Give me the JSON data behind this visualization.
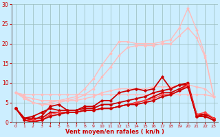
{
  "x": [
    0,
    1,
    2,
    3,
    4,
    5,
    6,
    7,
    8,
    9,
    10,
    11,
    12,
    13,
    14,
    15,
    16,
    17,
    18,
    19,
    20,
    21,
    22,
    23
  ],
  "series": [
    {
      "y": [
        7.5,
        7.0,
        7.0,
        7.0,
        7.0,
        7.0,
        7.0,
        7.0,
        7.0,
        7.0,
        7.0,
        7.0,
        7.0,
        7.0,
        7.0,
        7.0,
        7.0,
        7.0,
        7.0,
        7.0,
        7.0,
        7.0,
        7.0,
        6.5
      ],
      "color": "#ffbbbb",
      "lw": 1.0,
      "marker": "D",
      "ms": 1.5,
      "linestyle": "-"
    },
    {
      "y": [
        7.5,
        6.5,
        5.0,
        4.5,
        5.0,
        5.5,
        6.0,
        6.5,
        8.5,
        11.0,
        14.5,
        17.5,
        20.5,
        20.5,
        20.0,
        20.0,
        20.0,
        20.5,
        21.0,
        24.0,
        29.0,
        23.5,
        17.0,
        6.5
      ],
      "color": "#ffbbbb",
      "lw": 1.0,
      "marker": "D",
      "ms": 1.5,
      "linestyle": "-"
    },
    {
      "y": [
        7.5,
        6.0,
        5.0,
        4.5,
        4.5,
        5.0,
        5.5,
        6.0,
        7.0,
        8.5,
        11.5,
        14.0,
        17.0,
        19.0,
        19.5,
        19.5,
        19.5,
        20.0,
        20.0,
        22.0,
        24.0,
        21.5,
        16.5,
        6.5
      ],
      "color": "#ffbbbb",
      "lw": 1.0,
      "marker": "D",
      "ms": 1.5,
      "linestyle": "-"
    },
    {
      "y": [
        7.5,
        6.5,
        6.0,
        5.5,
        5.5,
        5.5,
        5.5,
        5.5,
        6.0,
        6.5,
        7.5,
        8.0,
        8.5,
        8.5,
        8.5,
        8.5,
        9.0,
        9.0,
        9.0,
        9.5,
        9.5,
        9.0,
        8.5,
        6.5
      ],
      "color": "#ffbbbb",
      "lw": 1.0,
      "marker": "D",
      "ms": 1.5,
      "linestyle": "-"
    },
    {
      "y": [
        3.5,
        1.0,
        0.5,
        1.5,
        4.0,
        4.5,
        3.0,
        3.0,
        4.0,
        4.0,
        5.5,
        5.5,
        7.5,
        8.0,
        8.5,
        8.0,
        8.5,
        11.5,
        8.5,
        9.5,
        10.0,
        2.0,
        2.0,
        1.0
      ],
      "color": "#cc0000",
      "lw": 1.3,
      "marker": "D",
      "ms": 1.8,
      "linestyle": "-"
    },
    {
      "y": [
        3.5,
        1.0,
        1.5,
        2.5,
        3.5,
        3.0,
        3.0,
        3.0,
        3.5,
        3.5,
        4.5,
        4.5,
        5.0,
        5.5,
        6.0,
        6.5,
        7.5,
        8.0,
        8.5,
        9.5,
        9.5,
        1.5,
        2.0,
        1.0
      ],
      "color": "#cc0000",
      "lw": 1.3,
      "marker": "D",
      "ms": 1.8,
      "linestyle": "-"
    },
    {
      "y": [
        3.5,
        1.0,
        1.0,
        1.0,
        2.5,
        2.5,
        2.5,
        2.5,
        3.0,
        3.0,
        3.5,
        3.5,
        4.0,
        4.5,
        5.0,
        5.5,
        6.5,
        7.5,
        7.5,
        8.5,
        9.5,
        1.5,
        1.5,
        0.5
      ],
      "color": "#cc0000",
      "lw": 1.3,
      "marker": "D",
      "ms": 1.8,
      "linestyle": "-"
    },
    {
      "y": [
        3.5,
        0.5,
        0.5,
        0.5,
        2.0,
        2.5,
        2.5,
        2.5,
        3.0,
        3.0,
        3.5,
        3.5,
        4.0,
        4.5,
        5.0,
        5.5,
        6.0,
        7.0,
        7.0,
        8.0,
        9.5,
        2.0,
        2.5,
        1.0
      ],
      "color": "#ff4444",
      "lw": 1.0,
      "marker": "D",
      "ms": 1.8,
      "linestyle": "-"
    },
    {
      "y": [
        3.5,
        0.5,
        0.0,
        0.5,
        1.5,
        2.0,
        2.5,
        2.5,
        3.0,
        3.0,
        3.5,
        3.5,
        4.0,
        4.5,
        4.5,
        5.0,
        5.5,
        6.5,
        7.0,
        8.0,
        9.0,
        1.5,
        1.5,
        0.5
      ],
      "color": "#cc0000",
      "lw": 1.3,
      "marker": "D",
      "ms": 1.8,
      "linestyle": "-"
    }
  ],
  "xlim": [
    -0.5,
    23.5
  ],
  "ylim": [
    0,
    30
  ],
  "yticks": [
    0,
    5,
    10,
    15,
    20,
    25,
    30
  ],
  "xticks": [
    0,
    1,
    2,
    3,
    4,
    5,
    6,
    7,
    8,
    9,
    10,
    11,
    12,
    13,
    14,
    15,
    16,
    17,
    18,
    19,
    20,
    21,
    22,
    23
  ],
  "xlabel": "Vent moyen/en rafales ( kn/h )",
  "bg_color": "#cceeff",
  "grid_color": "#99bbbb",
  "tick_color": "#cc0000",
  "label_color": "#cc0000"
}
